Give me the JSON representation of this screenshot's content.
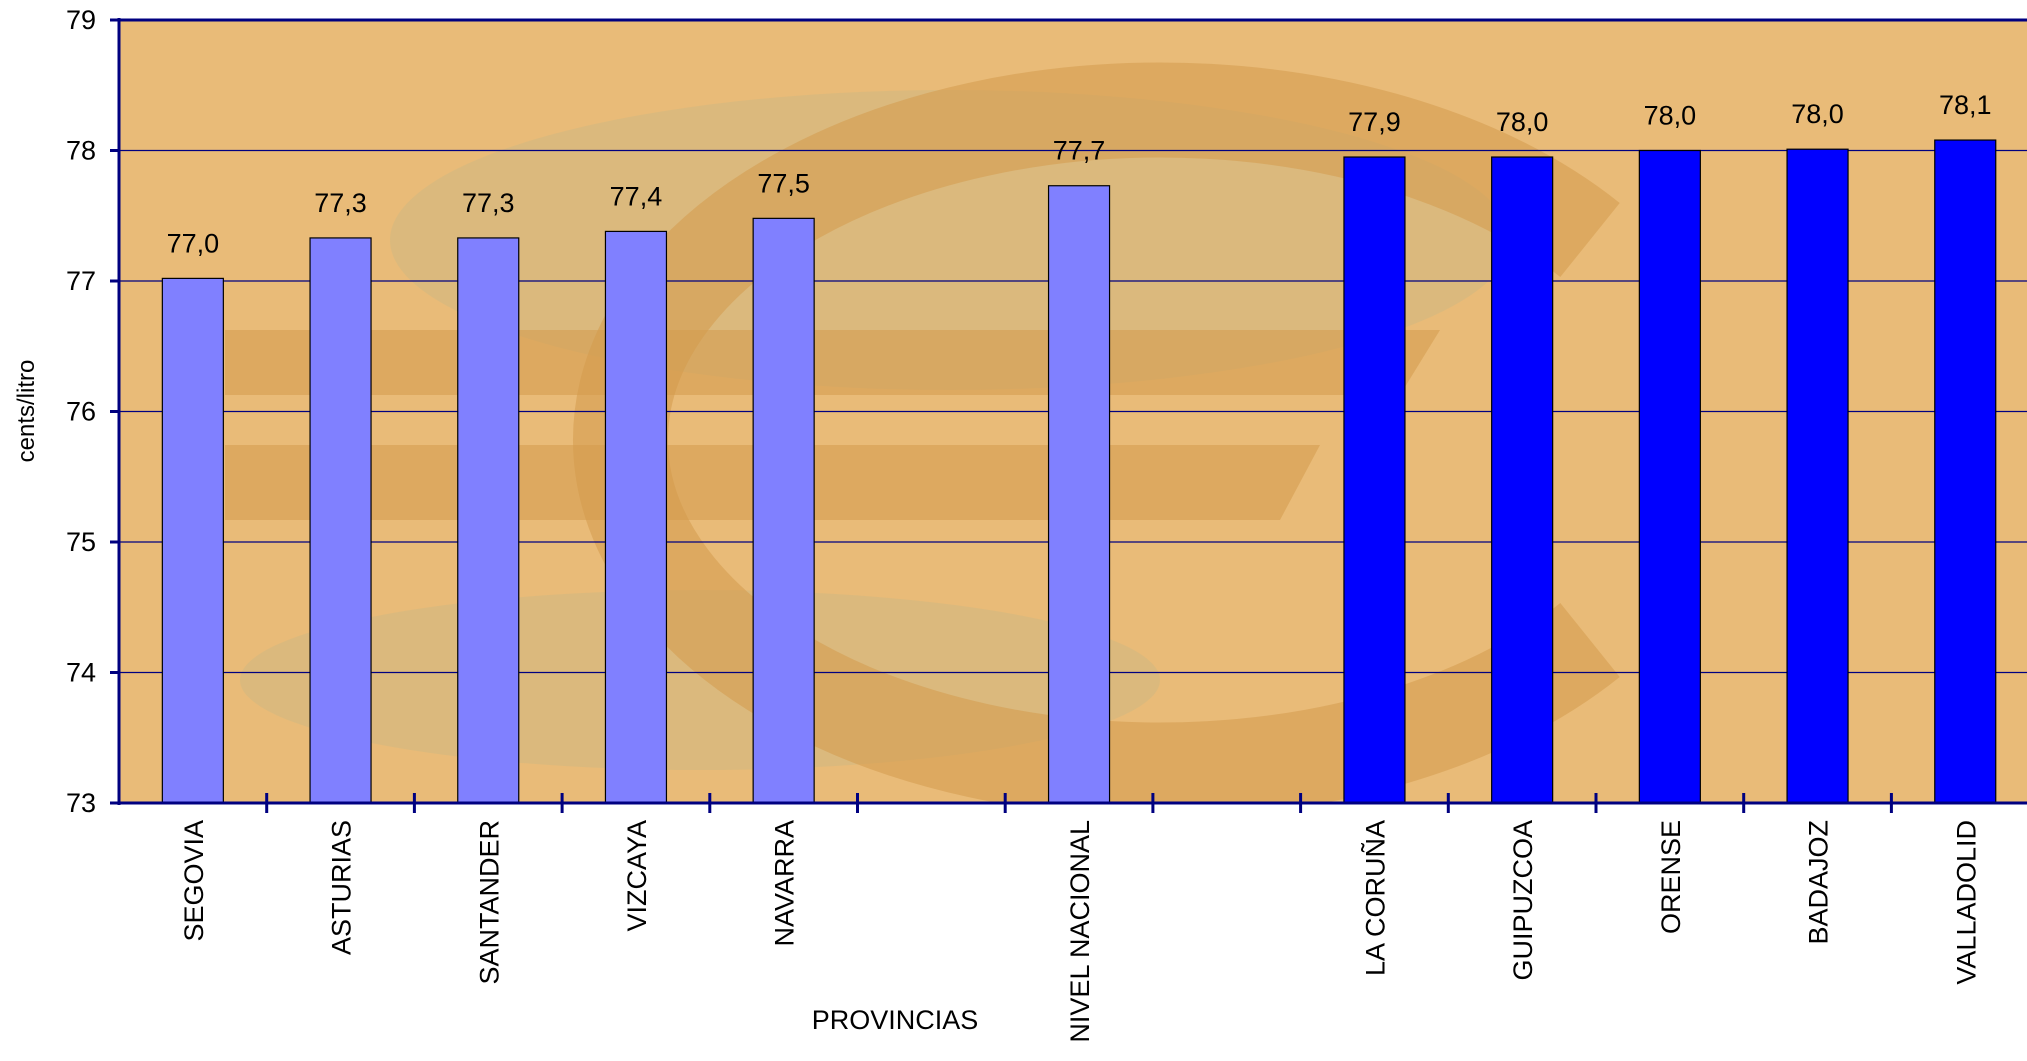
{
  "chart_data": {
    "type": "bar",
    "title": "",
    "xlabel": "PROVINCIAS",
    "ylabel": "cents/litro",
    "ylim": [
      73,
      79
    ],
    "yticks": [
      73,
      74,
      75,
      76,
      77,
      78,
      79
    ],
    "grid": true,
    "legend": "none",
    "categories": [
      "SEGOVIA",
      "ASTURIAS",
      "SANTANDER",
      "VIZCAYA",
      "NAVARRA",
      "",
      "NIVEL NACIONAL",
      "",
      "LA CORUÑA",
      "GUIPUZCOA",
      "ORENSE",
      "BADAJOZ",
      "VALLADOLID"
    ],
    "values": [
      77.02,
      77.33,
      77.33,
      77.38,
      77.48,
      null,
      77.73,
      null,
      77.95,
      77.95,
      78.0,
      78.01,
      78.08
    ],
    "data_labels": [
      "77,0",
      "77,3",
      "77,3",
      "77,4",
      "77,5",
      "",
      "77,7",
      "",
      "77,9",
      "78,0",
      "78,0",
      "78,0",
      "78,1"
    ],
    "bar_colors": [
      "#8080ff",
      "#8080ff",
      "#8080ff",
      "#8080ff",
      "#8080ff",
      "",
      "#8080ff",
      "",
      "#0000ff",
      "#0000ff",
      "#0000ff",
      "#0000ff",
      "#0000ff"
    ],
    "colors": {
      "plot_background": "#e9bb78",
      "watermark": "#d39b4c",
      "watermark_gray": "#c4b888",
      "axis": "#000080",
      "gridline": "#000080",
      "light_bar": "#8080ff",
      "dark_bar": "#0000ff"
    }
  }
}
